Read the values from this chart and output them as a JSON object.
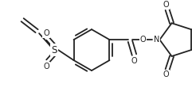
{
  "bg_color": "#ffffff",
  "line_color": "#222222",
  "line_width": 1.3,
  "font_size": 7.0,
  "fig_width": 2.41,
  "fig_height": 1.25,
  "dpi": 100,
  "xlim": [
    0,
    241
  ],
  "ylim": [
    0,
    125
  ]
}
